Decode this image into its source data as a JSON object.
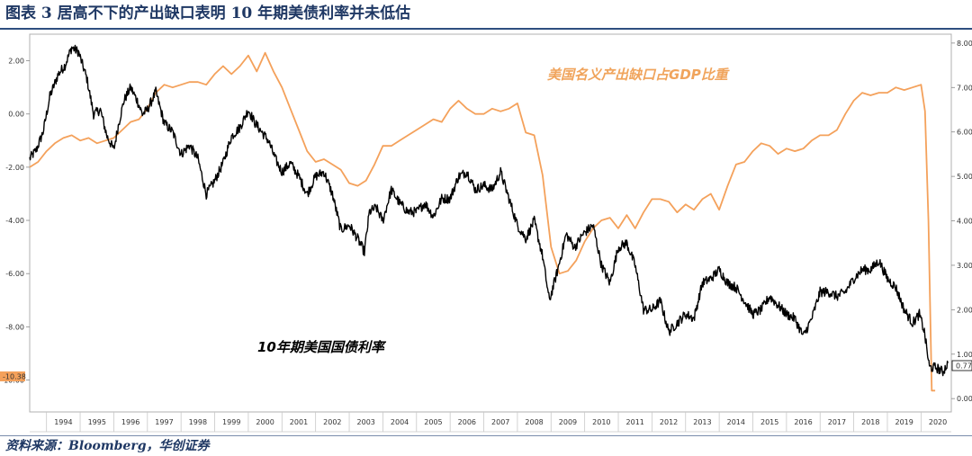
{
  "title": "图表 3 居高不下的产出缺口表明 10 年期美债利率并未低估",
  "source": "资料来源：Bloomberg，华创证券",
  "colors": {
    "output_gap": "#f4a15b",
    "yield": "#000000",
    "title": "#1f3864",
    "last_left_badge": "#f4a15b"
  },
  "chart_data": {
    "type": "line",
    "title": "",
    "x_ticks": [
      "1994",
      "1995",
      "1996",
      "1997",
      "1998",
      "1999",
      "2000",
      "2001",
      "2002",
      "2003",
      "2004",
      "2005",
      "2006",
      "2007",
      "2008",
      "2009",
      "2010",
      "2011",
      "2012",
      "2013",
      "2014",
      "2015",
      "2016",
      "2017",
      "2018",
      "2019",
      "2020"
    ],
    "x_range": [
      1993.5,
      2020.9
    ],
    "y_left": {
      "ticks": [
        "2.00",
        "0.00",
        "-2.00",
        "-4.00",
        "-6.00",
        "-8.00",
        "-10.00"
      ],
      "range": [
        -11.2,
        3.0
      ],
      "last_value_label": "-10.38"
    },
    "y_right": {
      "ticks": [
        "8.00",
        "7.00",
        "6.00",
        "5.00",
        "4.00",
        "3.00",
        "2.00",
        "1.00",
        "0.00"
      ],
      "range": [
        -0.3,
        8.2
      ],
      "last_value_label": "0.77"
    },
    "annotations": {
      "output_gap": "美国名义产出缺口占GDP比重",
      "yield": "10年期美国国债利率"
    },
    "series": [
      {
        "name": "美国名义产出缺口占GDP比重",
        "axis": "left",
        "points": [
          [
            1993.5,
            -2.0
          ],
          [
            1993.75,
            -1.8
          ],
          [
            1994.0,
            -1.4
          ],
          [
            1994.25,
            -1.1
          ],
          [
            1994.5,
            -0.9
          ],
          [
            1994.75,
            -0.8
          ],
          [
            1995.0,
            -1.0
          ],
          [
            1995.25,
            -0.9
          ],
          [
            1995.5,
            -1.1
          ],
          [
            1995.75,
            -1.0
          ],
          [
            1996.0,
            -0.9
          ],
          [
            1996.25,
            -0.6
          ],
          [
            1996.5,
            -0.3
          ],
          [
            1996.75,
            -0.2
          ],
          [
            1997.0,
            0.2
          ],
          [
            1997.25,
            0.8
          ],
          [
            1997.5,
            1.1
          ],
          [
            1997.75,
            1.0
          ],
          [
            1998.0,
            1.1
          ],
          [
            1998.25,
            1.2
          ],
          [
            1998.5,
            1.2
          ],
          [
            1998.75,
            1.1
          ],
          [
            1999.0,
            1.5
          ],
          [
            1999.25,
            1.8
          ],
          [
            1999.5,
            1.5
          ],
          [
            1999.75,
            1.8
          ],
          [
            2000.0,
            2.2
          ],
          [
            2000.25,
            1.6
          ],
          [
            2000.5,
            2.3
          ],
          [
            2000.75,
            1.6
          ],
          [
            2001.0,
            1.0
          ],
          [
            2001.25,
            0.2
          ],
          [
            2001.5,
            -0.6
          ],
          [
            2001.75,
            -1.4
          ],
          [
            2002.0,
            -1.8
          ],
          [
            2002.25,
            -1.7
          ],
          [
            2002.5,
            -1.9
          ],
          [
            2002.75,
            -2.1
          ],
          [
            2003.0,
            -2.6
          ],
          [
            2003.25,
            -2.7
          ],
          [
            2003.5,
            -2.5
          ],
          [
            2003.75,
            -1.9
          ],
          [
            2004.0,
            -1.2
          ],
          [
            2004.25,
            -1.2
          ],
          [
            2004.5,
            -1.0
          ],
          [
            2004.75,
            -0.8
          ],
          [
            2005.0,
            -0.6
          ],
          [
            2005.25,
            -0.4
          ],
          [
            2005.5,
            -0.2
          ],
          [
            2005.75,
            -0.3
          ],
          [
            2006.0,
            0.2
          ],
          [
            2006.25,
            0.5
          ],
          [
            2006.5,
            0.2
          ],
          [
            2006.75,
            0.0
          ],
          [
            2007.0,
            0.0
          ],
          [
            2007.25,
            0.2
          ],
          [
            2007.5,
            0.1
          ],
          [
            2007.75,
            0.2
          ],
          [
            2008.0,
            0.4
          ],
          [
            2008.25,
            -0.7
          ],
          [
            2008.5,
            -0.8
          ],
          [
            2008.75,
            -2.3
          ],
          [
            2009.0,
            -5.0
          ],
          [
            2009.25,
            -6.0
          ],
          [
            2009.5,
            -5.9
          ],
          [
            2009.75,
            -5.5
          ],
          [
            2010.0,
            -4.8
          ],
          [
            2010.25,
            -4.3
          ],
          [
            2010.5,
            -4.0
          ],
          [
            2010.75,
            -3.9
          ],
          [
            2011.0,
            -4.3
          ],
          [
            2011.25,
            -3.8
          ],
          [
            2011.5,
            -4.3
          ],
          [
            2011.75,
            -3.7
          ],
          [
            2012.0,
            -3.2
          ],
          [
            2012.25,
            -3.2
          ],
          [
            2012.5,
            -3.3
          ],
          [
            2012.75,
            -3.7
          ],
          [
            2013.0,
            -3.4
          ],
          [
            2013.25,
            -3.6
          ],
          [
            2013.5,
            -3.2
          ],
          [
            2013.75,
            -3.0
          ],
          [
            2014.0,
            -3.6
          ],
          [
            2014.25,
            -2.7
          ],
          [
            2014.5,
            -1.9
          ],
          [
            2014.75,
            -1.8
          ],
          [
            2015.0,
            -1.4
          ],
          [
            2015.25,
            -1.1
          ],
          [
            2015.5,
            -1.2
          ],
          [
            2015.75,
            -1.5
          ],
          [
            2016.0,
            -1.3
          ],
          [
            2016.25,
            -1.4
          ],
          [
            2016.5,
            -1.3
          ],
          [
            2016.75,
            -1.0
          ],
          [
            2017.0,
            -0.8
          ],
          [
            2017.25,
            -0.8
          ],
          [
            2017.5,
            -0.6
          ],
          [
            2017.75,
            0.0
          ],
          [
            2018.0,
            0.5
          ],
          [
            2018.25,
            0.8
          ],
          [
            2018.5,
            0.7
          ],
          [
            2018.75,
            0.8
          ],
          [
            2019.0,
            0.8
          ],
          [
            2019.25,
            1.0
          ],
          [
            2019.5,
            0.9
          ],
          [
            2019.75,
            1.0
          ],
          [
            2020.0,
            1.1
          ],
          [
            2020.12,
            0.1
          ],
          [
            2020.22,
            -4.0
          ],
          [
            2020.32,
            -10.4
          ],
          [
            2020.42,
            -10.4
          ]
        ]
      },
      {
        "name": "10年期美国国债利率",
        "axis": "right",
        "points": [
          [
            1993.5,
            5.4
          ],
          [
            1993.7,
            5.6
          ],
          [
            1993.9,
            6.0
          ],
          [
            1994.1,
            6.8
          ],
          [
            1994.35,
            7.3
          ],
          [
            1994.55,
            7.5
          ],
          [
            1994.75,
            7.9
          ],
          [
            1994.95,
            7.8
          ],
          [
            1995.2,
            7.2
          ],
          [
            1995.4,
            6.4
          ],
          [
            1995.6,
            6.5
          ],
          [
            1995.8,
            5.9
          ],
          [
            1996.0,
            5.6
          ],
          [
            1996.15,
            6.2
          ],
          [
            1996.3,
            6.7
          ],
          [
            1996.5,
            7.0
          ],
          [
            1996.7,
            6.7
          ],
          [
            1996.85,
            6.4
          ],
          [
            1997.0,
            6.5
          ],
          [
            1997.25,
            6.9
          ],
          [
            1997.5,
            6.2
          ],
          [
            1997.75,
            6.0
          ],
          [
            1998.0,
            5.5
          ],
          [
            1998.25,
            5.7
          ],
          [
            1998.5,
            5.4
          ],
          [
            1998.75,
            4.6
          ],
          [
            1999.0,
            4.9
          ],
          [
            1999.25,
            5.3
          ],
          [
            1999.5,
            5.9
          ],
          [
            1999.75,
            6.1
          ],
          [
            2000.0,
            6.5
          ],
          [
            2000.2,
            6.2
          ],
          [
            2000.4,
            6.0
          ],
          [
            2000.6,
            5.8
          ],
          [
            2000.8,
            5.4
          ],
          [
            2001.0,
            5.1
          ],
          [
            2001.25,
            5.3
          ],
          [
            2001.5,
            5.0
          ],
          [
            2001.75,
            4.6
          ],
          [
            2002.0,
            5.0
          ],
          [
            2002.25,
            5.1
          ],
          [
            2002.5,
            4.6
          ],
          [
            2002.75,
            3.8
          ],
          [
            2003.0,
            3.9
          ],
          [
            2003.25,
            3.6
          ],
          [
            2003.45,
            3.3
          ],
          [
            2003.6,
            4.2
          ],
          [
            2003.8,
            4.3
          ],
          [
            2004.0,
            4.0
          ],
          [
            2004.25,
            4.7
          ],
          [
            2004.5,
            4.4
          ],
          [
            2004.75,
            4.2
          ],
          [
            2005.0,
            4.2
          ],
          [
            2005.25,
            4.4
          ],
          [
            2005.5,
            4.1
          ],
          [
            2005.75,
            4.5
          ],
          [
            2006.0,
            4.5
          ],
          [
            2006.25,
            5.0
          ],
          [
            2006.5,
            5.1
          ],
          [
            2006.75,
            4.7
          ],
          [
            2007.0,
            4.8
          ],
          [
            2007.25,
            4.7
          ],
          [
            2007.5,
            5.1
          ],
          [
            2007.75,
            4.5
          ],
          [
            2008.0,
            3.9
          ],
          [
            2008.25,
            3.6
          ],
          [
            2008.5,
            4.0
          ],
          [
            2008.75,
            3.2
          ],
          [
            2008.95,
            2.2
          ],
          [
            2009.2,
            2.9
          ],
          [
            2009.45,
            3.7
          ],
          [
            2009.7,
            3.4
          ],
          [
            2009.95,
            3.7
          ],
          [
            2010.25,
            3.9
          ],
          [
            2010.5,
            3.0
          ],
          [
            2010.75,
            2.6
          ],
          [
            2011.0,
            3.4
          ],
          [
            2011.25,
            3.5
          ],
          [
            2011.5,
            3.0
          ],
          [
            2011.75,
            2.0
          ],
          [
            2012.0,
            2.0
          ],
          [
            2012.25,
            2.2
          ],
          [
            2012.5,
            1.5
          ],
          [
            2012.75,
            1.7
          ],
          [
            2013.0,
            1.9
          ],
          [
            2013.25,
            1.8
          ],
          [
            2013.5,
            2.6
          ],
          [
            2013.75,
            2.7
          ],
          [
            2014.0,
            2.9
          ],
          [
            2014.25,
            2.6
          ],
          [
            2014.5,
            2.5
          ],
          [
            2014.75,
            2.2
          ],
          [
            2015.0,
            1.9
          ],
          [
            2015.25,
            2.0
          ],
          [
            2015.5,
            2.3
          ],
          [
            2015.75,
            2.1
          ],
          [
            2016.0,
            1.9
          ],
          [
            2016.25,
            1.8
          ],
          [
            2016.5,
            1.4
          ],
          [
            2016.75,
            1.8
          ],
          [
            2017.0,
            2.4
          ],
          [
            2017.25,
            2.4
          ],
          [
            2017.5,
            2.3
          ],
          [
            2017.75,
            2.4
          ],
          [
            2018.0,
            2.7
          ],
          [
            2018.25,
            2.9
          ],
          [
            2018.5,
            2.9
          ],
          [
            2018.75,
            3.1
          ],
          [
            2019.0,
            2.7
          ],
          [
            2019.25,
            2.5
          ],
          [
            2019.5,
            2.0
          ],
          [
            2019.75,
            1.7
          ],
          [
            2019.95,
            1.9
          ],
          [
            2020.1,
            1.5
          ],
          [
            2020.25,
            0.7
          ],
          [
            2020.45,
            0.7
          ],
          [
            2020.65,
            0.6
          ],
          [
            2020.8,
            0.8
          ]
        ]
      }
    ]
  }
}
